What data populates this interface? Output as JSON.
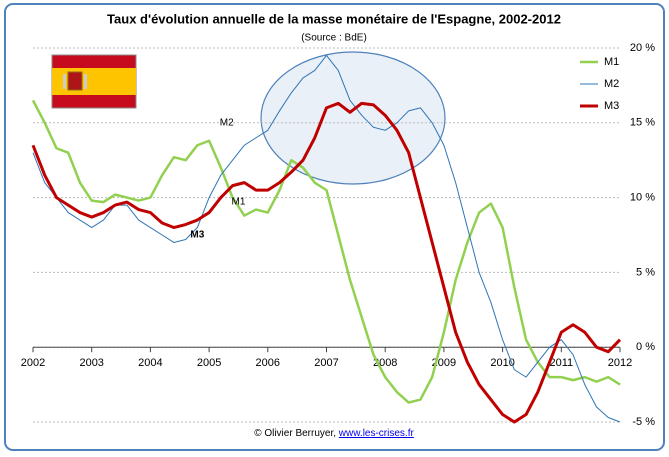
{
  "chart_data": {
    "type": "line",
    "title": "Taux d'évolution annuelle de la masse monétaire de l'Espagne, 2002-2012",
    "subtitle": "(Source : BdE)",
    "footer": {
      "credit": "© Olivier Berruyer, ",
      "link": "www.les-crises.fr"
    },
    "x": [
      2002,
      2002.2,
      2002.4,
      2002.6,
      2002.8,
      2003,
      2003.2,
      2003.4,
      2003.6,
      2003.8,
      2004,
      2004.2,
      2004.4,
      2004.6,
      2004.8,
      2005,
      2005.2,
      2005.4,
      2005.6,
      2005.8,
      2006,
      2006.2,
      2006.4,
      2006.6,
      2006.8,
      2007,
      2007.2,
      2007.4,
      2007.6,
      2007.8,
      2008,
      2008.2,
      2008.4,
      2008.6,
      2008.8,
      2009,
      2009.2,
      2009.4,
      2009.6,
      2009.8,
      2010,
      2010.2,
      2010.4,
      2010.6,
      2010.8,
      2011,
      2011.2,
      2011.4,
      2011.6,
      2011.8,
      2012
    ],
    "series": [
      {
        "name": "M1",
        "color": "#92d050",
        "values": [
          16.5,
          15,
          13.3,
          13,
          11,
          9.8,
          9.7,
          10.2,
          10,
          9.8,
          10,
          11.5,
          12.7,
          12.5,
          13.5,
          13.8,
          12,
          10,
          8.8,
          9.2,
          9,
          10.5,
          12.5,
          12,
          11,
          10.5,
          7.5,
          4.5,
          2,
          -0.5,
          -2,
          -3,
          -3.7,
          -3.5,
          -2,
          1,
          4.5,
          7,
          9,
          9.6,
          8,
          4,
          0.5,
          -1,
          -2,
          -2,
          -2.2,
          -2,
          -2.3,
          -2,
          -2.5
        ]
      },
      {
        "name": "M2",
        "color": "#2e75b6",
        "values": [
          13,
          11,
          10,
          9,
          8.5,
          8,
          8.5,
          9.5,
          9.5,
          8.5,
          8,
          7.5,
          7,
          7.2,
          8,
          10,
          11.5,
          12.5,
          13.5,
          14,
          14.5,
          15.8,
          17,
          18,
          18.5,
          19.5,
          18.5,
          16.5,
          15.5,
          14.7,
          14.5,
          15,
          15.8,
          16,
          15,
          13.5,
          11,
          8,
          5,
          3,
          0.5,
          -1.5,
          -2,
          -1,
          0,
          0.5,
          -0.5,
          -2.5,
          -4,
          -4.7,
          -5
        ]
      },
      {
        "name": "M3",
        "color": "#c00000",
        "values": [
          13.5,
          11.5,
          10,
          9.5,
          9,
          8.7,
          9,
          9.5,
          9.7,
          9.2,
          9,
          8.3,
          8,
          8.2,
          8.5,
          9,
          10,
          10.8,
          11,
          10.5,
          10.5,
          11,
          11.7,
          12.5,
          14,
          16,
          16.3,
          15.7,
          16.3,
          16.2,
          15.5,
          14.5,
          13,
          10,
          7,
          4,
          1,
          -1,
          -2.5,
          -3.5,
          -4.5,
          -5,
          -4.5,
          -3,
          -1,
          1,
          1.5,
          1,
          0,
          -0.3,
          0.5
        ]
      }
    ],
    "annotations": [
      {
        "text": "M2",
        "x": 2005.3,
        "y": 15,
        "color": "#2e75b6"
      },
      {
        "text": "M1",
        "x": 2005.5,
        "y": 9.7,
        "color": "#92d050"
      },
      {
        "text": "M3",
        "x": 2004.8,
        "y": 7.5,
        "color": "#c00000"
      }
    ],
    "xlim": [
      2002,
      2012
    ],
    "xticks": [
      2002,
      2003,
      2004,
      2005,
      2006,
      2007,
      2008,
      2009,
      2010,
      2011,
      2012
    ],
    "ylim": [
      -5,
      20
    ],
    "yticks": [
      {
        "value": -5,
        "label": "-5 %",
        "color": "#c00000"
      },
      {
        "value": 0,
        "label": "0 %"
      },
      {
        "value": 5,
        "label": "5 %"
      },
      {
        "value": 10,
        "label": "10 %"
      },
      {
        "value": 15,
        "label": "15 %"
      },
      {
        "value": 20,
        "label": "20 %"
      }
    ],
    "grid": true,
    "legend": "upper right"
  }
}
